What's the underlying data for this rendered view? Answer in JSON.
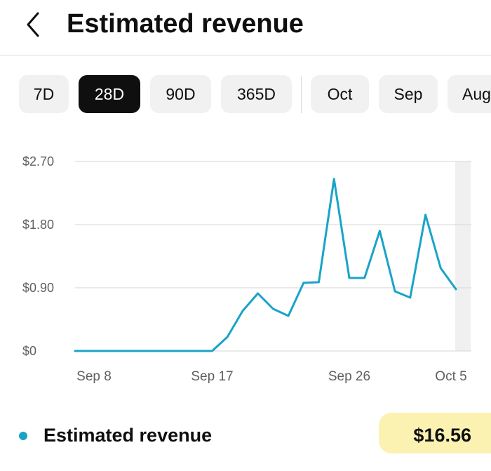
{
  "header": {
    "title": "Estimated revenue",
    "back_icon": "chevron-left-icon"
  },
  "chips": [
    {
      "label": "7D",
      "selected": false
    },
    {
      "label": "28D",
      "selected": true
    },
    {
      "label": "90D",
      "selected": false
    },
    {
      "label": "365D",
      "selected": false
    },
    {
      "label": "Oct",
      "selected": false
    },
    {
      "label": "Sep",
      "selected": false
    },
    {
      "label": "Aug",
      "selected": false
    }
  ],
  "chart_data": {
    "type": "line",
    "series": [
      {
        "color": "#1aa3c9",
        "values": [
          0,
          0,
          0,
          0,
          0,
          0,
          0,
          0,
          0,
          0,
          0.2,
          0.57,
          0.82,
          0.6,
          0.5,
          0.97,
          0.98,
          2.45,
          1.04,
          1.04,
          1.71,
          0.85,
          0.76,
          1.94,
          1.18,
          0.88
        ]
      }
    ],
    "x_tick_labels": [
      "Sep 8",
      "Sep 17",
      "Sep 26",
      "Oct 5"
    ],
    "y_tick_labels": [
      "$0",
      "$0.90",
      "$1.80",
      "$2.70"
    ],
    "y_ticks": [
      0,
      0.9,
      1.8,
      2.7
    ],
    "ylim": [
      0,
      2.7
    ],
    "grid": true,
    "highlight_last_point": true
  },
  "legend": {
    "label": "Estimated revenue",
    "value": "$16.56",
    "dot_color": "#1aa3c9"
  }
}
